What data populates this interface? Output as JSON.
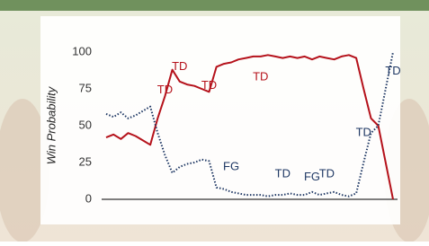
{
  "chart_data": {
    "type": "line",
    "ylabel": "Win Probability",
    "categories": [
      null,
      null,
      null,
      null,
      null,
      null,
      null,
      null,
      null,
      null,
      null,
      null,
      null,
      null,
      null,
      null,
      null,
      null,
      null,
      null,
      null,
      null,
      null,
      null,
      null,
      null,
      null,
      null,
      null,
      null,
      null,
      null,
      null,
      null,
      null,
      null,
      null,
      null,
      null,
      null
    ],
    "series": [
      {
        "color": "#b5121b",
        "style": "solid",
        "values": [
          42,
          44,
          41,
          45,
          43,
          40,
          37,
          55,
          70,
          88,
          80,
          78,
          77,
          75,
          73,
          90,
          92,
          93,
          95,
          96,
          97,
          97,
          98,
          97,
          96,
          97,
          96,
          97,
          95,
          97,
          96,
          95,
          97,
          98,
          96,
          75,
          55,
          50,
          25,
          0
        ]
      },
      {
        "color": "#1f3864",
        "style": "dotted",
        "values": [
          58,
          56,
          59,
          55,
          57,
          60,
          63,
          45,
          30,
          18,
          22,
          24,
          25,
          27,
          26,
          8,
          7,
          5,
          4,
          3,
          3,
          3,
          2,
          3,
          3,
          4,
          3,
          3,
          5,
          3,
          4,
          5,
          3,
          2,
          4,
          25,
          45,
          50,
          75,
          100
        ]
      }
    ],
    "annotations": [
      {
        "text": "TD",
        "x": 8,
        "y": 74,
        "color": "#b5121b"
      },
      {
        "text": "TD",
        "x": 10,
        "y": 90,
        "color": "#b5121b"
      },
      {
        "text": "TD",
        "x": 14,
        "y": 77,
        "color": "#b5121b"
      },
      {
        "text": "TD",
        "x": 21,
        "y": 83,
        "color": "#b5121b"
      },
      {
        "text": "FG",
        "x": 17,
        "y": 22,
        "color": "#1f3864"
      },
      {
        "text": "TD",
        "x": 24,
        "y": 17,
        "color": "#1f3864"
      },
      {
        "text": "FG",
        "x": 28,
        "y": 15,
        "color": "#1f3864"
      },
      {
        "text": "TD",
        "x": 30,
        "y": 17,
        "color": "#1f3864"
      },
      {
        "text": "TD",
        "x": 35,
        "y": 45,
        "color": "#1f3864"
      },
      {
        "text": "TD",
        "x": 39,
        "y": 87,
        "color": "#1f3864"
      }
    ],
    "ylim": [
      0,
      100
    ],
    "yticks": [
      0,
      25,
      50,
      75,
      100
    ],
    "grid": false
  }
}
